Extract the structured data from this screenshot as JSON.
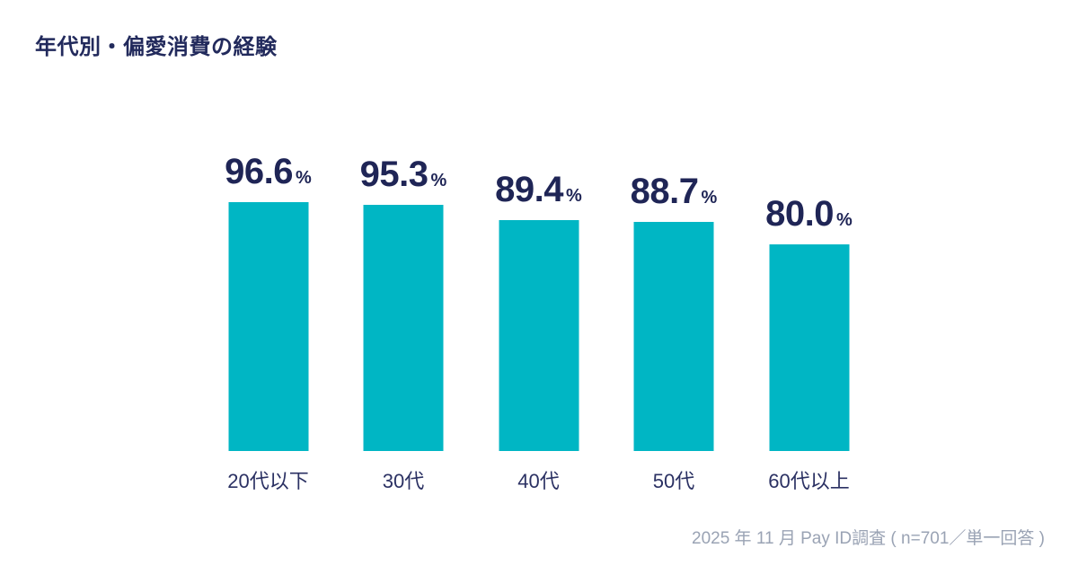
{
  "title": "年代別・偏愛消費の経験",
  "footer": "2025 年 11 月 Pay ID調査 ( n=701／単一回答 )",
  "colors": {
    "background": "#ffffff",
    "bar": "#00b6c4",
    "title_text": "#222a5c",
    "value_text": "#1f2556",
    "category_text": "#2b3163",
    "footer_text": "#9aa3b4"
  },
  "chart_data": {
    "type": "bar",
    "title": "年代別・偏愛消費の経験",
    "categories": [
      "20代以下",
      "30代",
      "40代",
      "50代",
      "60代以上"
    ],
    "values": [
      96.6,
      95.3,
      89.4,
      88.7,
      80.0
    ],
    "value_labels": [
      "96.6",
      "95.3",
      "89.4",
      "88.7",
      "80.0"
    ],
    "unit": "%",
    "xlabel": "",
    "ylabel": "",
    "ylim": [
      0,
      100
    ],
    "grid": false,
    "legend": false,
    "orientation": "vertical",
    "value_label_position": "above-bar",
    "source_note": "2025 年 11 月 Pay ID調査 ( n=701／単一回答 )"
  }
}
